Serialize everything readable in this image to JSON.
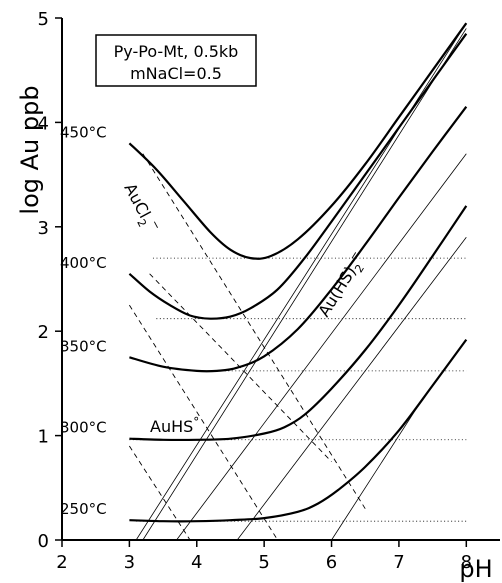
{
  "chart_data": {
    "type": "line",
    "xlabel": "pH",
    "ylabel": "log Au ppb",
    "xlim": [
      2,
      8.5
    ],
    "ylim": [
      0,
      5
    ],
    "xticks": [
      2,
      3,
      4,
      5,
      6,
      7,
      8
    ],
    "yticks": [
      0,
      1,
      2,
      3,
      4,
      5
    ],
    "xtick_labels": [
      "2",
      "3",
      "4",
      "5",
      "6",
      "7",
      "8"
    ],
    "ytick_labels": [
      "0",
      "1",
      "2",
      "3",
      "4",
      "5"
    ],
    "legend_box": [
      "Py-Po-Mt, 0.5kb",
      "mNaCl=0.5"
    ],
    "annotations": {
      "aucl2_main": "AuCl",
      "aucl2_sub": "2",
      "aucl2_sup": "−",
      "auhs2_main": "Au(HS)",
      "auhs2_sub": "2",
      "auhs2_sup": "−",
      "auhs_main": "AuHS",
      "auhs_sup": "°"
    },
    "series": [
      {
        "name": "450°C",
        "x": [
          3.0,
          3.4,
          3.8,
          4.2,
          4.5,
          4.8,
          5.1,
          5.5,
          6.0,
          6.5,
          7.0,
          7.5,
          8.0
        ],
        "y": [
          3.8,
          3.55,
          3.25,
          2.95,
          2.78,
          2.7,
          2.72,
          2.88,
          3.2,
          3.6,
          4.05,
          4.5,
          4.95
        ]
      },
      {
        "name": "400°C",
        "x": [
          3.0,
          3.3,
          3.6,
          3.9,
          4.2,
          4.5,
          4.8,
          5.2,
          5.6,
          6.0,
          6.5,
          7.0,
          7.5,
          8.0
        ],
        "y": [
          2.55,
          2.38,
          2.25,
          2.15,
          2.12,
          2.14,
          2.22,
          2.4,
          2.7,
          3.05,
          3.5,
          3.95,
          4.4,
          4.85
        ]
      },
      {
        "name": "350°C",
        "x": [
          3.0,
          3.5,
          4.0,
          4.3,
          4.6,
          5.0,
          5.5,
          6.0,
          6.5,
          7.0,
          7.5,
          8.0
        ],
        "y": [
          1.75,
          1.66,
          1.62,
          1.62,
          1.65,
          1.76,
          2.02,
          2.4,
          2.83,
          3.28,
          3.72,
          4.15
        ]
      },
      {
        "name": "300°C",
        "x": [
          3.0,
          3.5,
          4.0,
          4.5,
          5.0,
          5.3,
          5.6,
          6.0,
          6.5,
          7.0,
          7.5,
          8.0
        ],
        "y": [
          0.97,
          0.96,
          0.96,
          0.97,
          1.02,
          1.08,
          1.2,
          1.45,
          1.82,
          2.25,
          2.72,
          3.2
        ]
      },
      {
        "name": "250°C",
        "x": [
          3.0,
          3.5,
          4.0,
          4.5,
          5.0,
          5.5,
          5.8,
          6.1,
          6.5,
          7.0,
          7.5,
          8.0
        ],
        "y": [
          0.19,
          0.18,
          0.18,
          0.19,
          0.21,
          0.27,
          0.35,
          0.48,
          0.7,
          1.05,
          1.48,
          1.92
        ]
      }
    ],
    "dotted_levels": [
      {
        "y": 2.7,
        "x": [
          3.35,
          8.0
        ]
      },
      {
        "y": 2.12,
        "x": [
          3.4,
          8.0
        ]
      },
      {
        "y": 1.62,
        "x": [
          4.0,
          8.0
        ]
      },
      {
        "y": 0.96,
        "x": [
          3.0,
          8.0
        ]
      },
      {
        "y": 0.18,
        "x": [
          3.1,
          8.0
        ]
      }
    ],
    "dashed_lines": [
      {
        "x": [
          3.2,
          6.5
        ],
        "y": [
          3.7,
          0.3
        ]
      },
      {
        "x": [
          3.3,
          6.0
        ],
        "y": [
          2.55,
          0.75
        ]
      },
      {
        "x": [
          3.0,
          5.2
        ],
        "y": [
          2.25,
          0.0
        ]
      },
      {
        "x": [
          3.0,
          3.9
        ],
        "y": [
          0.9,
          0.0
        ]
      }
    ],
    "thin_lines": [
      {
        "x": [
          3.1,
          8.0
        ],
        "y": [
          0.0,
          4.95
        ]
      },
      {
        "x": [
          3.2,
          8.0
        ],
        "y": [
          0.0,
          4.9
        ]
      },
      {
        "x": [
          3.7,
          8.0
        ],
        "y": [
          0.0,
          3.7
        ]
      },
      {
        "x": [
          4.6,
          8.0
        ],
        "y": [
          0.0,
          2.9
        ]
      },
      {
        "x": [
          6.0,
          7.3
        ],
        "y": [
          0.0,
          1.3
        ]
      }
    ],
    "grid": false
  }
}
